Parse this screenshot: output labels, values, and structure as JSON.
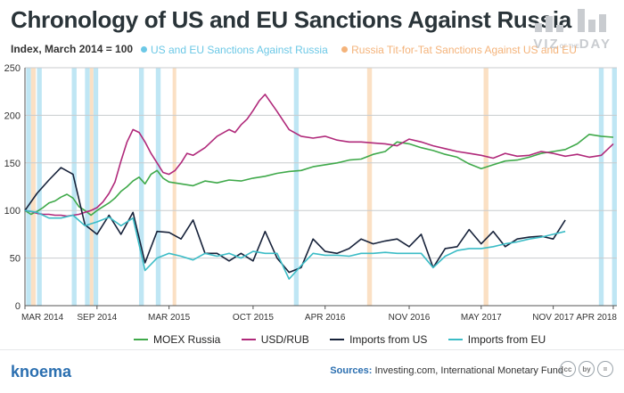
{
  "header": {
    "title": "Chronology of US and EU Sanctions Against Russia",
    "subtitle": "Index, March 2014 = 100",
    "badge_line1": "VIZ",
    "badge_line2": "DAY",
    "badge_small": "OF THE"
  },
  "legend_top": [
    {
      "label": "US and EU Sanctions Against Russia",
      "color": "#6cc8e6"
    },
    {
      "label": "Russia Tit-for-Tat Sanctions Against US and EU",
      "color": "#f4b37a"
    }
  ],
  "footer": {
    "brand": "knoema",
    "sources_label": "Sources:",
    "sources_text": "Investing.com, International Monetary Fund",
    "license_icons": [
      "cc",
      "by",
      "="
    ]
  },
  "chart_data": {
    "type": "line",
    "ylim": [
      0,
      250
    ],
    "yticks": [
      0,
      50,
      100,
      150,
      200,
      250
    ],
    "x_start": "2014-03",
    "x_end": "2018-04",
    "x_ticks": [
      {
        "label": "MAR 2014",
        "t": 0
      },
      {
        "label": "SEP 2014",
        "t": 6
      },
      {
        "label": "MAR 2015",
        "t": 12
      },
      {
        "label": "OCT 2015",
        "t": 19
      },
      {
        "label": "APR 2016",
        "t": 25
      },
      {
        "label": "NOV 2016",
        "t": 32
      },
      {
        "label": "MAY 2017",
        "t": 38
      },
      {
        "label": "NOV 2017",
        "t": 44
      },
      {
        "label": "APR 2018",
        "t": 49
      }
    ],
    "grid": true,
    "series": [
      {
        "name": "MOEX Russia",
        "color": "#3fa94a",
        "x": [
          0,
          0.5,
          1,
          1.5,
          2,
          2.5,
          3,
          3.5,
          4,
          4.5,
          5,
          5.5,
          6,
          6.5,
          7,
          7.5,
          8,
          8.5,
          9,
          9.5,
          10,
          10.5,
          11,
          11.5,
          12,
          13,
          14,
          15,
          16,
          17,
          18,
          19,
          20,
          21,
          22,
          23,
          24,
          25,
          26,
          27,
          28,
          29,
          30,
          31,
          32,
          33,
          34,
          35,
          36,
          37,
          38,
          39,
          40,
          41,
          42,
          43,
          44,
          45,
          46,
          47,
          48,
          49
        ],
        "values": [
          100,
          96,
          99,
          103,
          108,
          110,
          114,
          117,
          113,
          104,
          100,
          95,
          100,
          104,
          108,
          113,
          120,
          125,
          131,
          135,
          128,
          138,
          142,
          134,
          130,
          128,
          126,
          131,
          129,
          132,
          131,
          134,
          136,
          139,
          141,
          142,
          146,
          148,
          150,
          153,
          154,
          159,
          162,
          172,
          170,
          166,
          163,
          159,
          156,
          149,
          144,
          148,
          152,
          153,
          156,
          160,
          162,
          164,
          170,
          180,
          178,
          177
        ]
      },
      {
        "name": "USD/RUB",
        "color": "#b0297a",
        "x": [
          0,
          0.5,
          1,
          1.5,
          2,
          2.5,
          3,
          3.5,
          4,
          4.5,
          5,
          5.5,
          6,
          6.5,
          7,
          7.5,
          8,
          8.5,
          9,
          9.5,
          10,
          10.5,
          11,
          11.5,
          12,
          12.5,
          13,
          13.5,
          14,
          15,
          16,
          17,
          17.5,
          18,
          18.5,
          19,
          19.5,
          20,
          21,
          22,
          23,
          24,
          25,
          26,
          27,
          28,
          29,
          30,
          31,
          32,
          33,
          34,
          35,
          36,
          37,
          38,
          39,
          40,
          41,
          42,
          43,
          44,
          45,
          46,
          47,
          48,
          49
        ],
        "values": [
          100,
          99,
          97,
          96,
          96,
          95,
          95,
          94,
          95,
          96,
          98,
          100,
          103,
          109,
          118,
          130,
          152,
          172,
          185,
          182,
          172,
          160,
          150,
          140,
          138,
          142,
          150,
          160,
          158,
          166,
          178,
          185,
          182,
          190,
          196,
          205,
          215,
          222,
          204,
          185,
          178,
          176,
          178,
          174,
          172,
          172,
          171,
          170,
          168,
          175,
          172,
          168,
          165,
          162,
          160,
          158,
          155,
          160,
          157,
          158,
          162,
          160,
          157,
          159,
          156,
          158,
          170
        ]
      },
      {
        "name": "Imports from US",
        "color": "#17223a",
        "x": [
          0,
          1,
          2,
          3,
          4,
          5,
          6,
          7,
          8,
          9,
          10,
          11,
          12,
          13,
          14,
          15,
          16,
          17,
          18,
          19,
          20,
          21,
          22,
          23,
          24,
          25,
          26,
          27,
          28,
          29,
          30,
          31,
          32,
          33,
          34,
          35,
          36,
          37,
          38,
          39,
          40,
          41,
          42,
          43,
          44,
          45
        ],
        "values": [
          100,
          118,
          132,
          145,
          138,
          85,
          75,
          95,
          75,
          98,
          45,
          78,
          77,
          70,
          90,
          55,
          55,
          47,
          55,
          47,
          78,
          50,
          35,
          40,
          70,
          57,
          55,
          60,
          70,
          65,
          68,
          70,
          62,
          75,
          40,
          60,
          62,
          80,
          65,
          78,
          62,
          70,
          72,
          73,
          70,
          90
        ]
      },
      {
        "name": "Imports from EU",
        "color": "#3bbcc6",
        "x": [
          0,
          1,
          2,
          3,
          4,
          5,
          6,
          7,
          8,
          9,
          10,
          11,
          12,
          13,
          14,
          15,
          16,
          17,
          18,
          19,
          20,
          21,
          22,
          23,
          24,
          25,
          26,
          27,
          28,
          29,
          30,
          31,
          32,
          33,
          34,
          35,
          36,
          37,
          38,
          39,
          40,
          41,
          42,
          43,
          44,
          45
        ],
        "values": [
          100,
          98,
          92,
          92,
          95,
          84,
          88,
          93,
          84,
          92,
          37,
          50,
          55,
          52,
          48,
          55,
          52,
          55,
          50,
          57,
          55,
          55,
          28,
          42,
          55,
          53,
          53,
          52,
          55,
          55,
          56,
          55,
          55,
          55,
          40,
          52,
          58,
          60,
          60,
          62,
          65,
          67,
          70,
          72,
          75,
          78
        ]
      }
    ],
    "sanctions_us_eu_bands": [
      [
        0.1,
        0.5
      ],
      [
        1,
        1.4
      ],
      [
        3.9,
        4.3
      ],
      [
        5,
        5.4
      ],
      [
        5.7,
        6.1
      ],
      [
        9.5,
        9.9
      ],
      [
        10.9,
        11.3
      ],
      [
        22.4,
        22.8
      ],
      [
        47.8,
        48.2
      ],
      [
        48.9,
        49.3
      ]
    ],
    "sanctions_russia_bands": [
      [
        0.5,
        0.9
      ],
      [
        5.4,
        5.7
      ],
      [
        12.3,
        12.6
      ],
      [
        28.5,
        28.9
      ],
      [
        38.2,
        38.6
      ]
    ]
  }
}
